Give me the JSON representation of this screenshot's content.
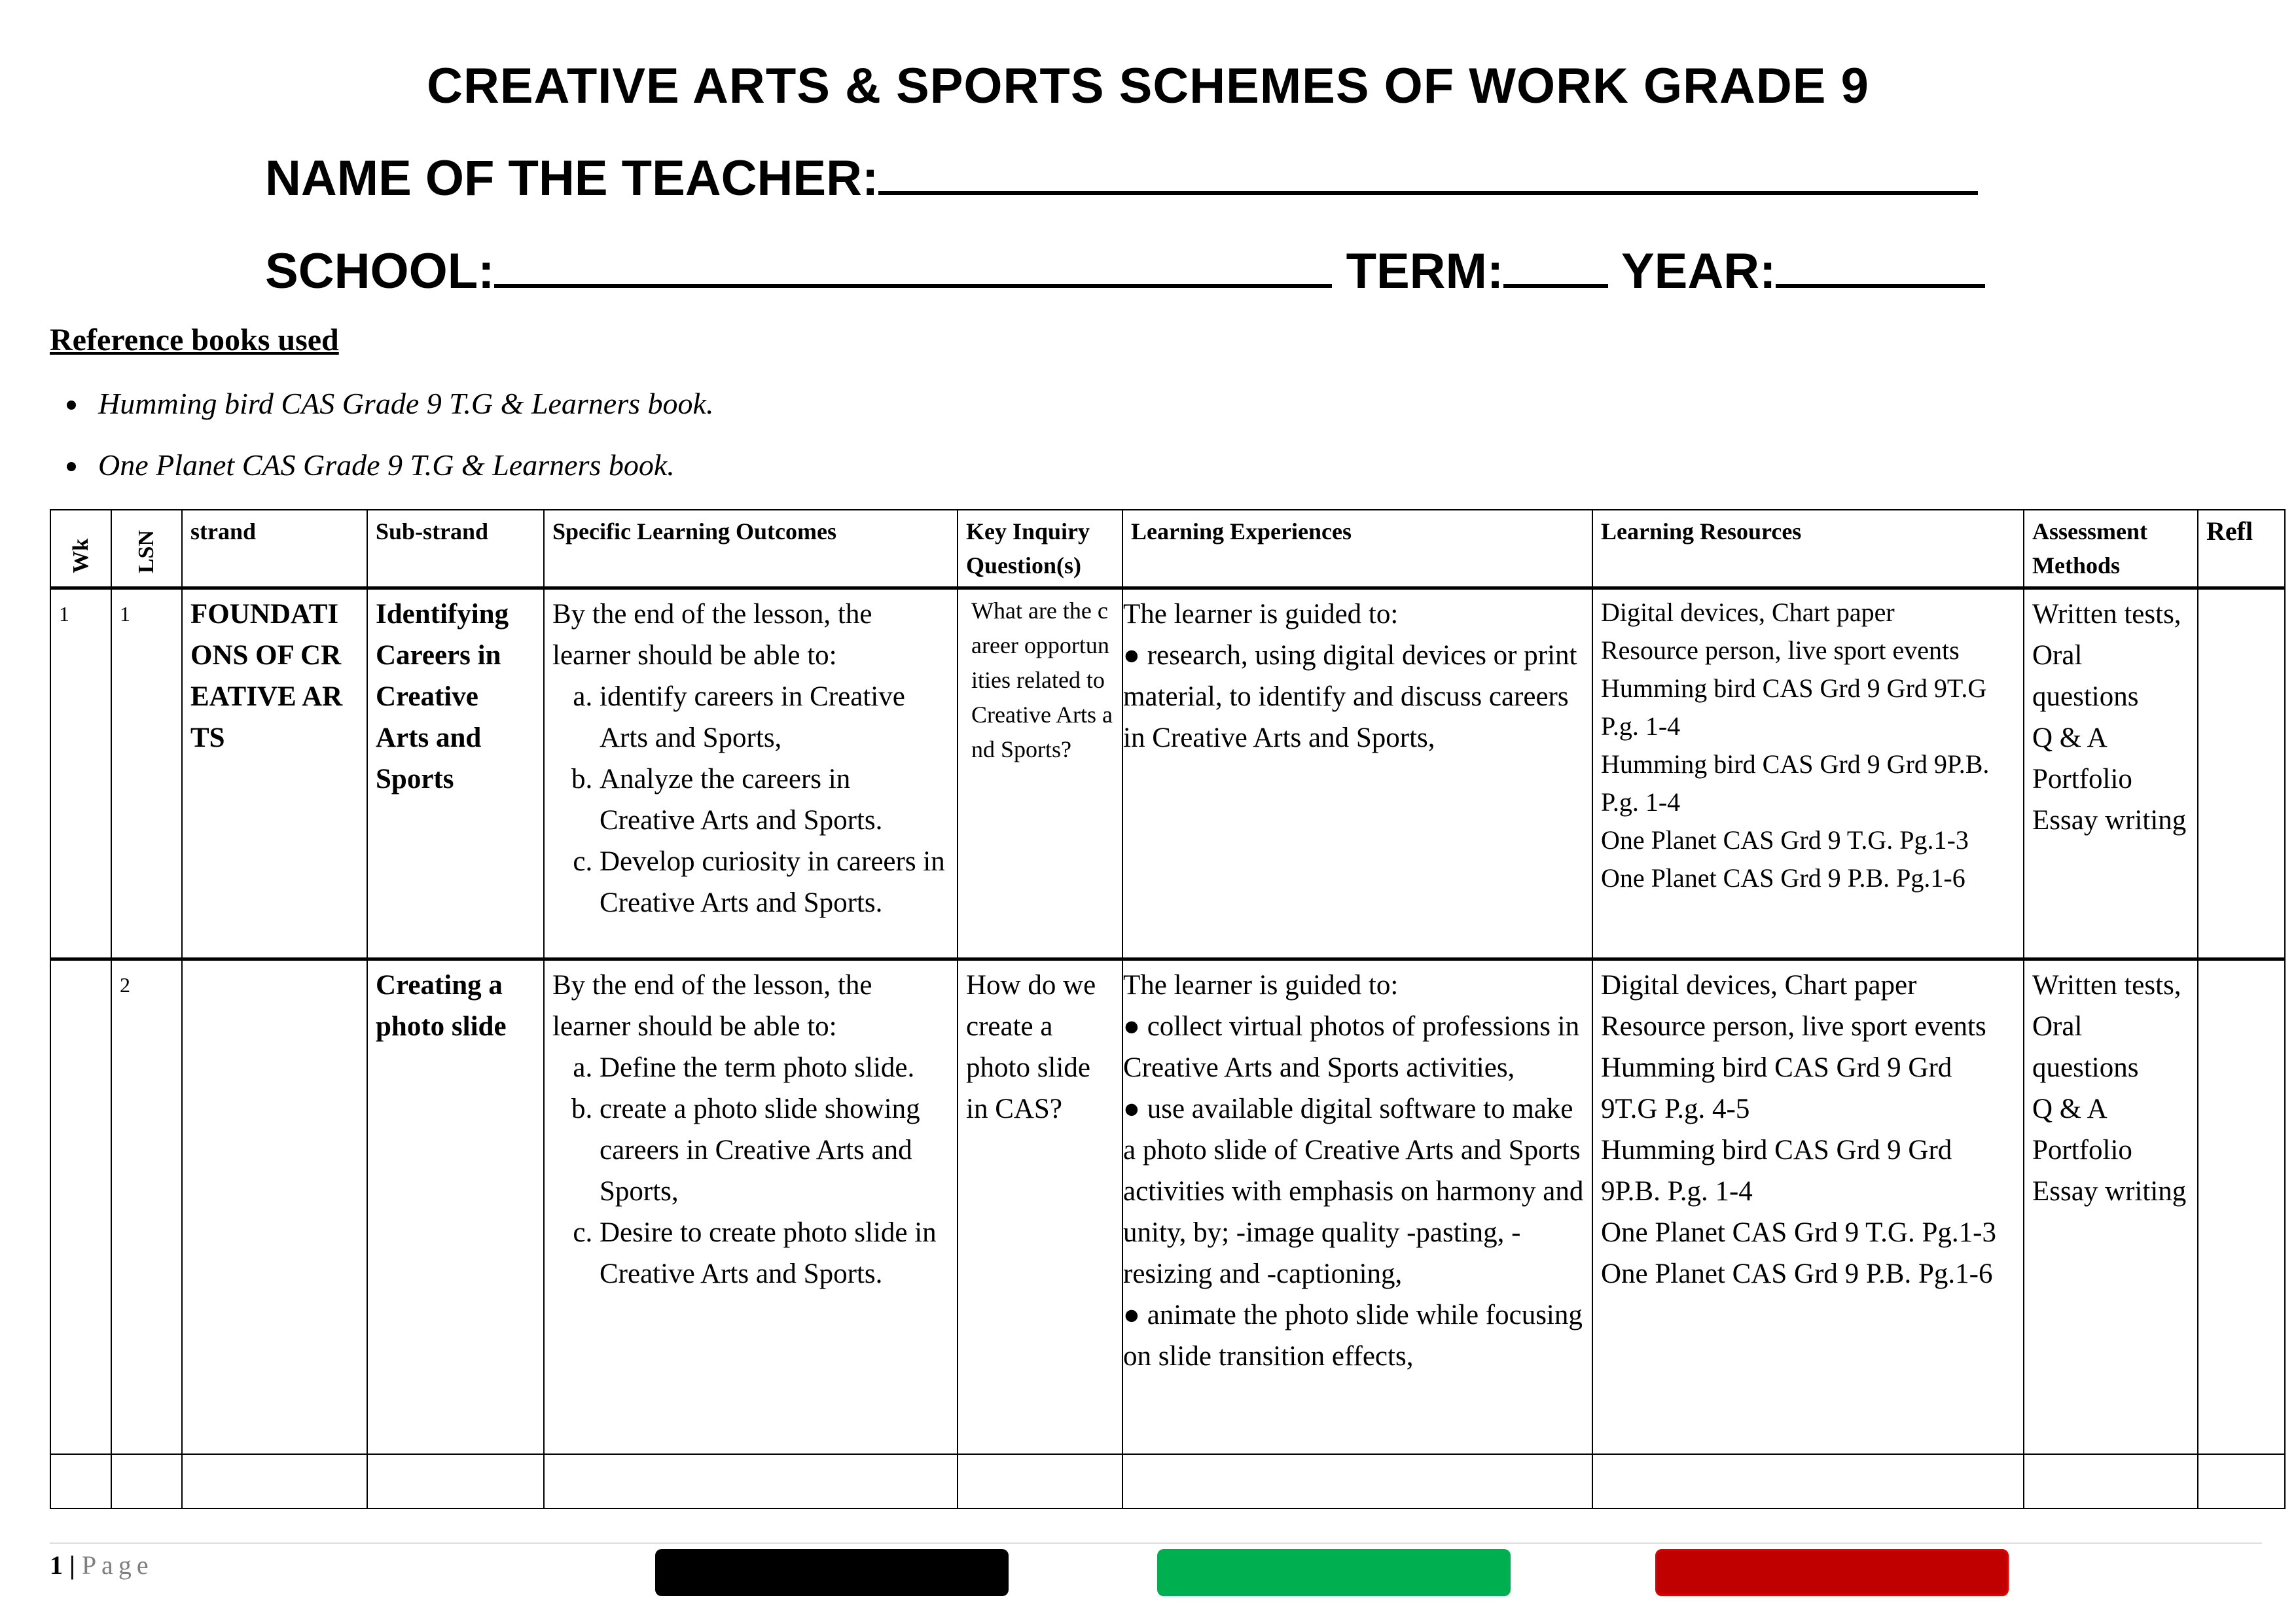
{
  "header": {
    "title": "CREATIVE ARTS & SPORTS SCHEMES OF WORK GRADE 9",
    "teacher_label": "NAME OF THE TEACHER:",
    "school_label": "SCHOOL:",
    "term_label": "TERM:",
    "year_label": "YEAR:"
  },
  "references": {
    "heading": "Reference books used",
    "items": [
      "Humming bird CAS Grade 9 T.G & Learners book.",
      "One Planet CAS Grade 9 T.G & Learners book."
    ]
  },
  "table": {
    "columns": [
      "Wk",
      "LSN",
      "strand",
      "Sub-strand",
      "Specific Learning Outcomes",
      "Key Inquiry Question(s)",
      "Learning Experiences",
      "Learning Resources",
      "Assessment Methods",
      "Refl"
    ],
    "rows": [
      {
        "wk": "1",
        "lsn": "1",
        "strand": "FOUNDATIONS OF CREATIVE ARTS",
        "substrand": "Identifying Careers in Creative Arts and Sports",
        "outcomes_intro": "By the end of the lesson, the learner should be able to:",
        "outcomes": [
          "identify careers in Creative Arts and Sports,",
          "Analyze the careers in Creative Arts and Sports.",
          "Develop curiosity in careers in Creative Arts and Sports."
        ],
        "inquiry": "What are the career opportunities related to Creative Arts and Sports?",
        "experiences_intro": "The learner is guided to:",
        "experiences": [
          "● research, using digital devices or print material, to identify and discuss careers in Creative Arts and Sports,"
        ],
        "resources": [
          "Digital devices, Chart paper",
          "Resource person, live sport events",
          "Humming bird CAS Grd 9 Grd 9T.G P.g. 1-4",
          "Humming bird CAS Grd 9 Grd 9P.B. P.g. 1-4",
          "One Planet CAS Grd 9 T.G. Pg.1-3",
          "One Planet CAS Grd 9 P.B. Pg.1-6"
        ],
        "assessment": [
          "Written tests,",
          "Oral questions",
          "Q & A",
          "Portfolio",
          "Essay writing"
        ],
        "reflection": ""
      },
      {
        "wk": "",
        "lsn": "2",
        "strand": "",
        "substrand": "Creating a photo slide",
        "outcomes_intro": "By the end of the lesson, the learner should be able to:",
        "outcomes": [
          "Define the term photo slide.",
          "create a photo slide showing careers in Creative Arts and Sports,",
          "Desire to create photo slide in Creative Arts and Sports."
        ],
        "inquiry": "How do we create a photo slide in CAS?",
        "experiences_intro": "The learner is guided to:",
        "experiences": [
          "● collect virtual photos of professions in Creative Arts and Sports activities,",
          "● use available digital software to make a photo slide of Creative Arts and Sports activities with emphasis on harmony and unity, by; -image quality -pasting, -resizing and  -captioning,",
          "● animate the photo slide while focusing on slide transition effects,"
        ],
        "resources": [
          "Digital devices, Chart paper",
          "Resource person, live sport events",
          "Humming bird CAS Grd 9 Grd 9T.G P.g. 4-5",
          "Humming bird CAS Grd 9 Grd 9P.B. P.g. 1-4",
          "One Planet CAS Grd 9 T.G. Pg.1-3",
          "One Planet CAS Grd 9 P.B. Pg.1-6"
        ],
        "assessment": [
          "Written tests,",
          "Oral questions",
          "Q & A",
          "Portfolio",
          "Essay writing"
        ],
        "reflection": ""
      }
    ]
  },
  "footer": {
    "page_number": "1",
    "separator": "|",
    "page_label": "Page",
    "bar_colors": [
      "#000000",
      "#00b050",
      "#c00000"
    ]
  }
}
